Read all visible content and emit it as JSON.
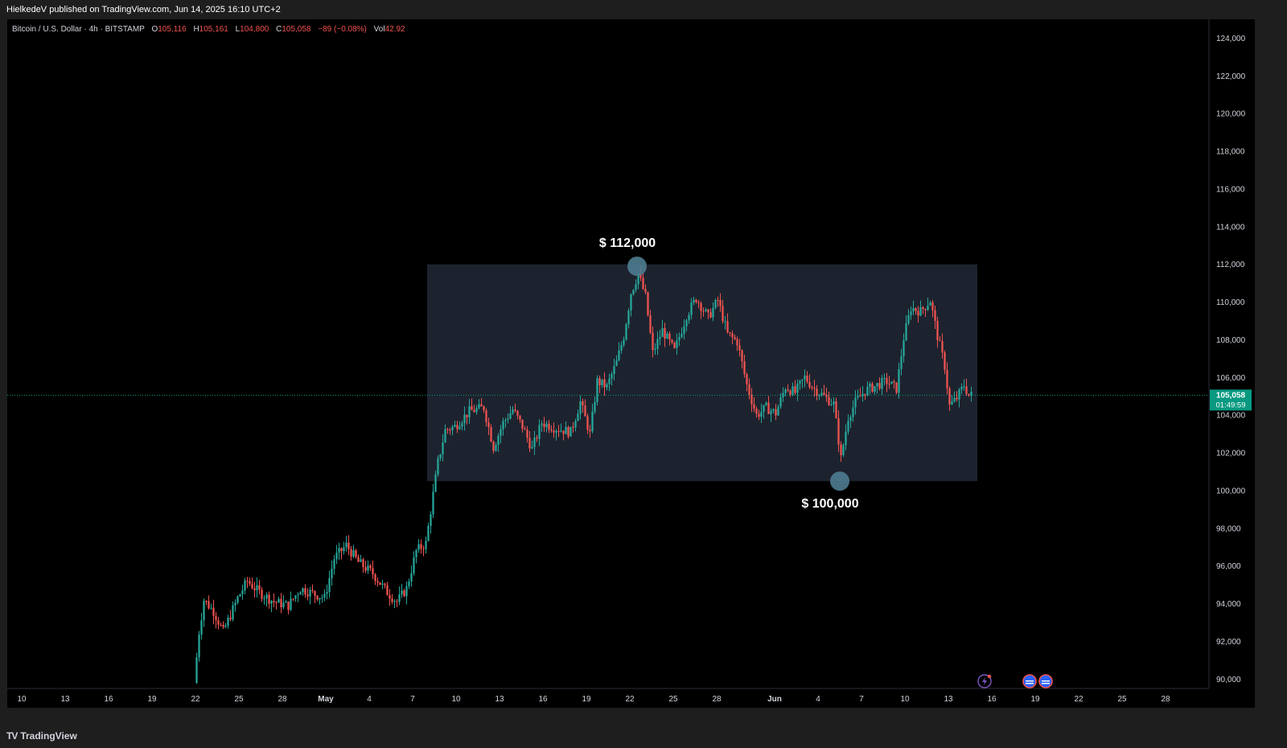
{
  "header": {
    "published": "HielkedeV published on TradingView.com, Jun 14, 2025 16:10 UTC+2"
  },
  "legend": {
    "symbol": "Bitcoin / U.S. Dollar · 4h · BITSTAMP",
    "open_label": "O",
    "open": "105,116",
    "high_label": "H",
    "high": "105,161",
    "low_label": "L",
    "low": "104,800",
    "close_label": "C",
    "close": "105,058",
    "change": "−89 (−0.08%)",
    "vol_label": "Vol",
    "vol": "42.92"
  },
  "price_tag": {
    "price": "105,058",
    "countdown": "01:49:59"
  },
  "annotations": {
    "high": "$ 112,000",
    "low": "$ 100,000"
  },
  "footer": {
    "logo": "TradingView",
    "logo_mark": "TV"
  },
  "colors": {
    "up": "#26a69a",
    "down": "#ef5350",
    "accent": "#089981",
    "box": "#1f2530",
    "marker": "#4f7c91"
  },
  "chart_data": {
    "type": "candlestick",
    "title": "Bitcoin / U.S. Dollar · 4h · BITSTAMP",
    "ylim": [
      89500,
      125000
    ],
    "y_ticks": [
      90000,
      92000,
      94000,
      96000,
      98000,
      100000,
      102000,
      104000,
      106000,
      108000,
      110000,
      112000,
      114000,
      116000,
      118000,
      120000,
      122000,
      124000
    ],
    "y_tick_labels": [
      "90,000",
      "92,000",
      "94,000",
      "96,000",
      "98,000",
      "100,000",
      "102,000",
      "104,000",
      "106,000",
      "108,000",
      "110,000",
      "112,000",
      "114,000",
      "116,000",
      "118,000",
      "120,000",
      "122,000",
      "124,000"
    ],
    "x_ticks": [
      {
        "label": "10",
        "date": "2025-04-10"
      },
      {
        "label": "13",
        "date": "2025-04-13"
      },
      {
        "label": "16",
        "date": "2025-04-16"
      },
      {
        "label": "19",
        "date": "2025-04-19"
      },
      {
        "label": "22",
        "date": "2025-04-22"
      },
      {
        "label": "25",
        "date": "2025-04-25"
      },
      {
        "label": "28",
        "date": "2025-04-28"
      },
      {
        "label": "May",
        "date": "2025-05-01"
      },
      {
        "label": "4",
        "date": "2025-05-04"
      },
      {
        "label": "7",
        "date": "2025-05-07"
      },
      {
        "label": "10",
        "date": "2025-05-10"
      },
      {
        "label": "13",
        "date": "2025-05-13"
      },
      {
        "label": "16",
        "date": "2025-05-16"
      },
      {
        "label": "19",
        "date": "2025-05-19"
      },
      {
        "label": "22",
        "date": "2025-05-22"
      },
      {
        "label": "25",
        "date": "2025-05-25"
      },
      {
        "label": "28",
        "date": "2025-05-28"
      },
      {
        "label": "Jun",
        "date": "2025-06-01"
      },
      {
        "label": "4",
        "date": "2025-06-04"
      },
      {
        "label": "7",
        "date": "2025-06-07"
      },
      {
        "label": "10",
        "date": "2025-06-10"
      },
      {
        "label": "13",
        "date": "2025-06-13"
      },
      {
        "label": "16",
        "date": "2025-06-16"
      },
      {
        "label": "19",
        "date": "2025-06-19"
      },
      {
        "label": "22",
        "date": "2025-06-22"
      },
      {
        "label": "25",
        "date": "2025-06-25"
      },
      {
        "label": "28",
        "date": "2025-06-28"
      }
    ],
    "x_range": [
      "2025-04-09",
      "2025-07-01"
    ],
    "current_price": 105058,
    "range_box": {
      "start": "2025-05-08",
      "end": "2025-06-15",
      "top": 112000,
      "bottom": 100500
    },
    "markers": [
      {
        "date": "2025-05-22T12:00",
        "price": 111900,
        "label": "$ 112,000"
      },
      {
        "date": "2025-06-05T12:00",
        "price": 100500,
        "label": "$ 100,000"
      }
    ],
    "price_path": [
      [
        "2025-04-22T00:00",
        89800
      ],
      [
        "2025-04-22T08:00",
        92500
      ],
      [
        "2025-04-22T16:00",
        94200
      ],
      [
        "2025-04-23T08:00",
        93600
      ],
      [
        "2025-04-24T00:00",
        92500
      ],
      [
        "2025-04-25T00:00",
        94300
      ],
      [
        "2025-04-25T16:00",
        95200
      ],
      [
        "2025-04-26T12:00",
        94600
      ],
      [
        "2025-04-27T12:00",
        94100
      ],
      [
        "2025-04-28T12:00",
        93900
      ],
      [
        "2025-04-29T08:00",
        94800
      ],
      [
        "2025-04-30T08:00",
        94500
      ],
      [
        "2025-05-01T00:00",
        94300
      ],
      [
        "2025-05-01T16:00",
        96400
      ],
      [
        "2025-05-02T12:00",
        97100
      ],
      [
        "2025-05-03T08:00",
        96200
      ],
      [
        "2025-05-04T08:00",
        95600
      ],
      [
        "2025-05-05T08:00",
        94600
      ],
      [
        "2025-05-06T00:00",
        94100
      ],
      [
        "2025-05-06T16:00",
        94800
      ],
      [
        "2025-05-07T08:00",
        96800
      ],
      [
        "2025-05-08T00:00",
        97200
      ],
      [
        "2025-05-08T12:00",
        99800
      ],
      [
        "2025-05-08T20:00",
        101500
      ],
      [
        "2025-05-09T08:00",
        103200
      ],
      [
        "2025-05-10T00:00",
        103400
      ],
      [
        "2025-05-11T00:00",
        104200
      ],
      [
        "2025-05-12T00:00",
        104400
      ],
      [
        "2025-05-12T16:00",
        102300
      ],
      [
        "2025-05-13T08:00",
        103600
      ],
      [
        "2025-05-14T00:00",
        104300
      ],
      [
        "2025-05-14T16:00",
        103400
      ],
      [
        "2025-05-15T08:00",
        102200
      ],
      [
        "2025-05-16T00:00",
        103600
      ],
      [
        "2025-05-17T00:00",
        103300
      ],
      [
        "2025-05-18T00:00",
        103100
      ],
      [
        "2025-05-18T16:00",
        104700
      ],
      [
        "2025-05-19T08:00",
        103000
      ],
      [
        "2025-05-19T20:00",
        105800
      ],
      [
        "2025-05-20T12:00",
        105500
      ],
      [
        "2025-05-21T04:00",
        106800
      ],
      [
        "2025-05-21T16:00",
        108200
      ],
      [
        "2025-05-22T04:00",
        110500
      ],
      [
        "2025-05-22T16:00",
        111500
      ],
      [
        "2025-05-23T04:00",
        110300
      ],
      [
        "2025-05-23T16:00",
        107300
      ],
      [
        "2025-05-24T08:00",
        108500
      ],
      [
        "2025-05-25T04:00",
        107400
      ],
      [
        "2025-05-26T00:00",
        109300
      ],
      [
        "2025-05-26T16:00",
        110200
      ],
      [
        "2025-05-27T12:00",
        109200
      ],
      [
        "2025-05-28T04:00",
        110100
      ],
      [
        "2025-05-28T20:00",
        108300
      ],
      [
        "2025-05-29T12:00",
        107900
      ],
      [
        "2025-05-30T04:00",
        105600
      ],
      [
        "2025-05-30T20:00",
        104000
      ],
      [
        "2025-05-31T12:00",
        104400
      ],
      [
        "2025-06-01T04:00",
        104100
      ],
      [
        "2025-06-01T20:00",
        105500
      ],
      [
        "2025-06-02T12:00",
        105200
      ],
      [
        "2025-06-03T04:00",
        106000
      ],
      [
        "2025-06-03T20:00",
        105400
      ],
      [
        "2025-06-04T12:00",
        105000
      ],
      [
        "2025-06-05T04:00",
        104600
      ],
      [
        "2025-06-05T16:00",
        101700
      ],
      [
        "2025-06-06T04:00",
        103900
      ],
      [
        "2025-06-06T16:00",
        104700
      ],
      [
        "2025-06-07T08:00",
        105300
      ],
      [
        "2025-06-08T04:00",
        105600
      ],
      [
        "2025-06-08T20:00",
        105800
      ],
      [
        "2025-06-09T12:00",
        105400
      ],
      [
        "2025-06-10T00:00",
        108100
      ],
      [
        "2025-06-10T12:00",
        109700
      ],
      [
        "2025-06-11T04:00",
        109500
      ],
      [
        "2025-06-11T20:00",
        110100
      ],
      [
        "2025-06-12T08:00",
        108200
      ],
      [
        "2025-06-12T20:00",
        106600
      ],
      [
        "2025-06-13T04:00",
        104500
      ],
      [
        "2025-06-13T16:00",
        104900
      ],
      [
        "2025-06-14T04:00",
        105600
      ],
      [
        "2025-06-14T12:00",
        105058
      ]
    ]
  }
}
